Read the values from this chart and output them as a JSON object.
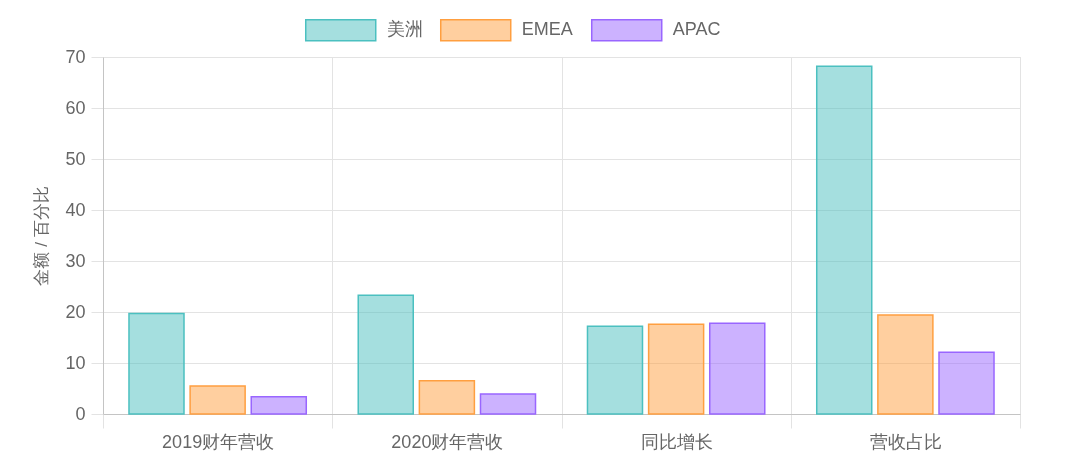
{
  "chart_data": {
    "type": "bar",
    "ylabel": "金额 / 百分比",
    "categories": [
      "2019财年营收",
      "2020财年营收",
      "同比增长",
      "营收占比"
    ],
    "series": [
      {
        "name": "美洲",
        "color": "#4bc0c0",
        "values": [
          19.7,
          23.3,
          17.2,
          68.2
        ]
      },
      {
        "name": "EMEA",
        "color": "#ff9f40",
        "values": [
          5.5,
          6.5,
          17.6,
          19.4
        ]
      },
      {
        "name": "APAC",
        "color": "#9966ff",
        "values": [
          3.4,
          3.9,
          17.8,
          12.1
        ]
      }
    ],
    "ylim": [
      0,
      70
    ],
    "yticks": [
      0,
      10,
      20,
      30,
      40,
      50,
      60,
      70
    ],
    "grid": true,
    "legend": "top"
  }
}
